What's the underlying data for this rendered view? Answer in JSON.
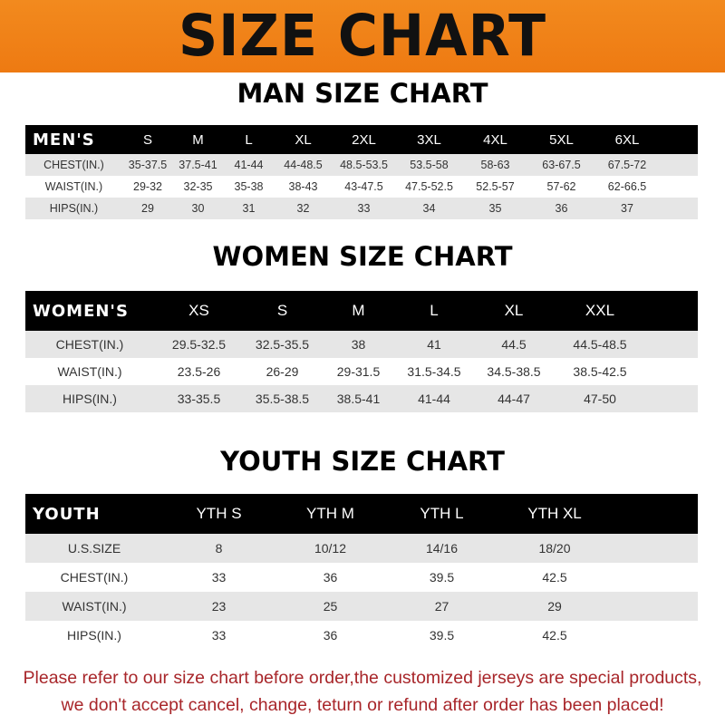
{
  "banner_title": "SIZE CHART",
  "men": {
    "title": "MAN SIZE CHART",
    "header": [
      "MEN'S",
      "S",
      "M",
      "L",
      "XL",
      "2XL",
      "3XL",
      "4XL",
      "5XL",
      "6XL"
    ],
    "rows": [
      [
        "CHEST(IN.)",
        "35-37.5",
        "37.5-41",
        "41-44",
        "44-48.5",
        "48.5-53.5",
        "53.5-58",
        "58-63",
        "63-67.5",
        "67.5-72"
      ],
      [
        "WAIST(IN.)",
        "29-32",
        "32-35",
        "35-38",
        "38-43",
        "43-47.5",
        "47.5-52.5",
        "52.5-57",
        "57-62",
        "62-66.5"
      ],
      [
        "HIPS(IN.)",
        "29",
        "30",
        "31",
        "32",
        "33",
        "34",
        "35",
        "36",
        "37"
      ]
    ]
  },
  "women": {
    "title": "WOMEN SIZE CHART",
    "header": [
      "WOMEN'S",
      "XS",
      "S",
      "M",
      "L",
      "XL",
      "XXL"
    ],
    "rows": [
      [
        "CHEST(IN.)",
        "29.5-32.5",
        "32.5-35.5",
        "38",
        "41",
        "44.5",
        "44.5-48.5"
      ],
      [
        "WAIST(IN.)",
        "23.5-26",
        "26-29",
        "29-31.5",
        "31.5-34.5",
        "34.5-38.5",
        "38.5-42.5"
      ],
      [
        "HIPS(IN.)",
        "33-35.5",
        "35.5-38.5",
        "38.5-41",
        "41-44",
        "44-47",
        "47-50"
      ]
    ]
  },
  "youth": {
    "title": "YOUTH SIZE CHART",
    "header": [
      "YOUTH",
      "YTH S",
      "YTH M",
      "YTH L",
      "YTH XL"
    ],
    "rows": [
      [
        "U.S.SIZE",
        "8",
        "10/12",
        "14/16",
        "18/20"
      ],
      [
        "CHEST(IN.)",
        "33",
        "36",
        "39.5",
        "42.5"
      ],
      [
        "WAIST(IN.)",
        "23",
        "25",
        "27",
        "29"
      ],
      [
        "HIPS(IN.)",
        "33",
        "36",
        "39.5",
        "42.5"
      ]
    ]
  },
  "notice": {
    "line1": "Please refer to our size chart before order,the customized jerseys are special products,",
    "line2": "we don't accept cancel, change, teturn or refund after order has been placed!"
  },
  "colors": {
    "banner": "#f0821a",
    "header_row": "#000000",
    "stripe": "#e6e6e6",
    "notice_text": "#a8262a"
  }
}
